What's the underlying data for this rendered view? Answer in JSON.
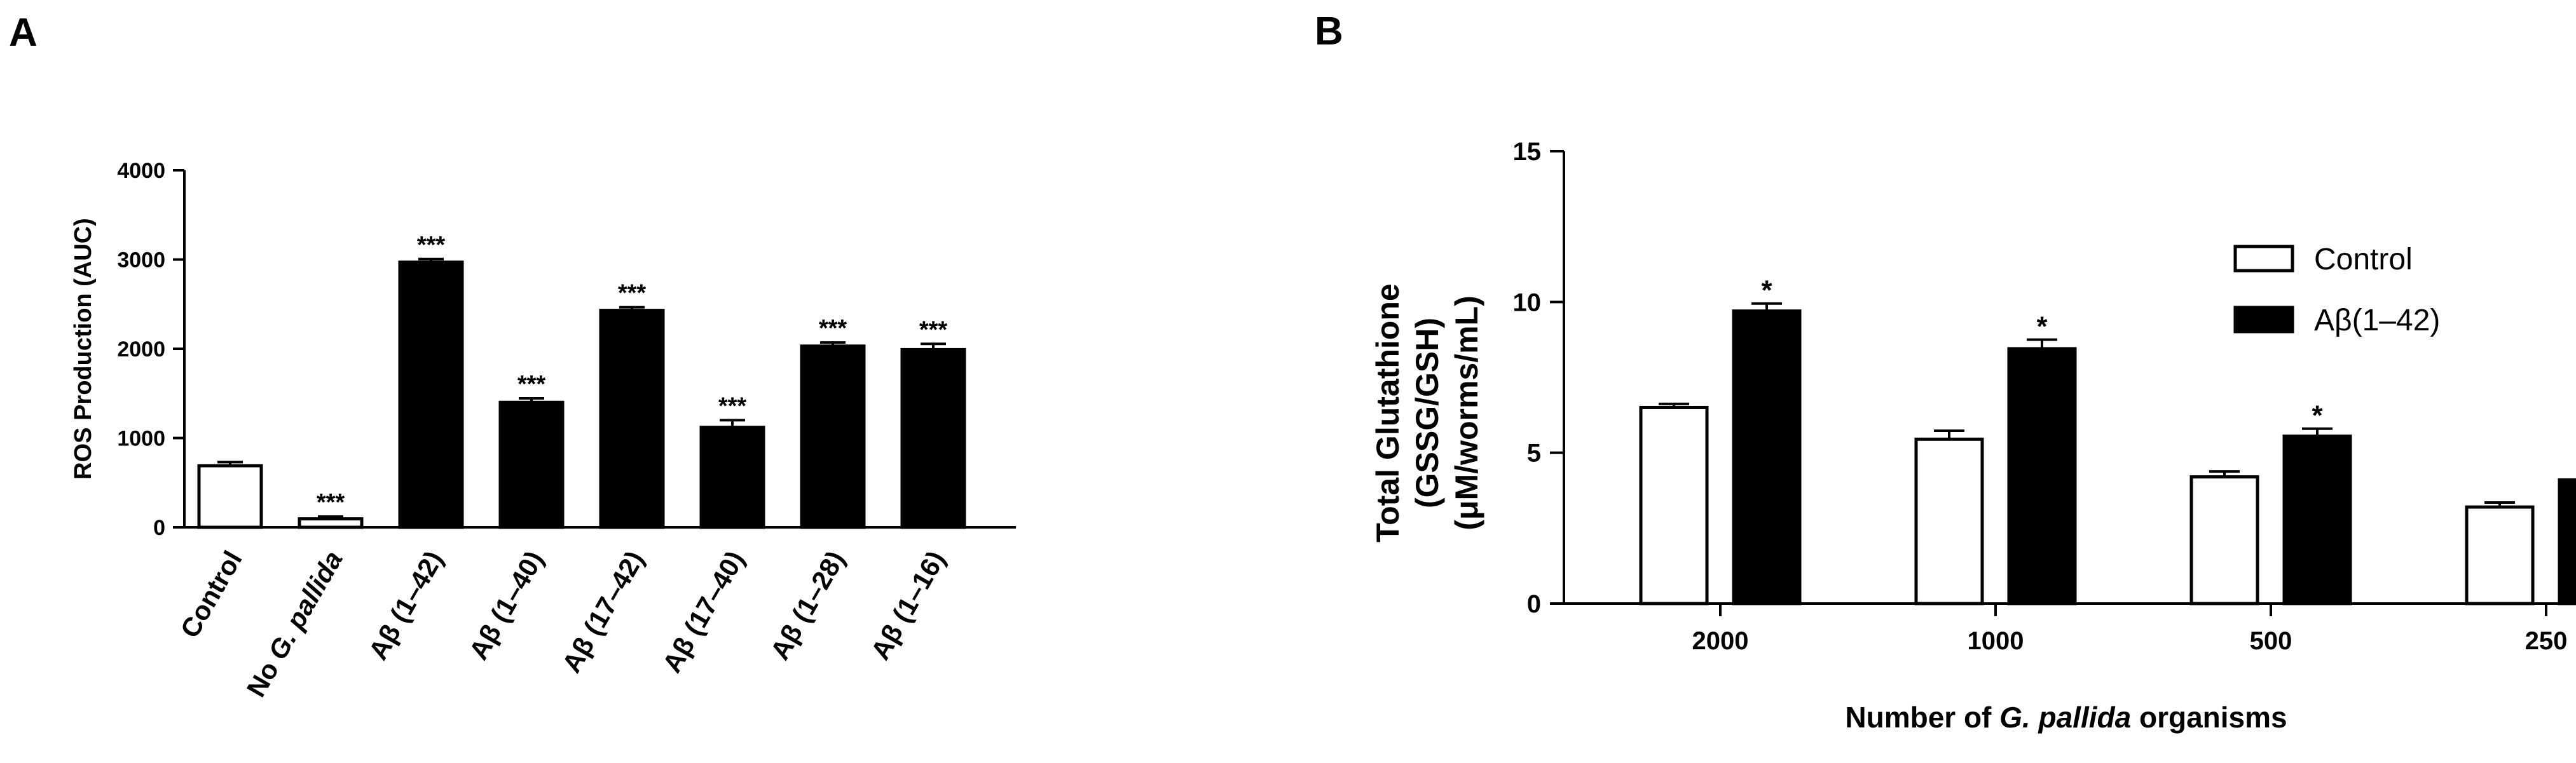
{
  "panels": {
    "a": "A",
    "b": "B"
  },
  "chart_data": [
    {
      "type": "bar",
      "title": "",
      "xlabel": "",
      "ylabel": "ROS Production (AUC)",
      "ylim": [
        0,
        4000
      ],
      "yticks": [
        "0",
        "1000",
        "2000",
        "3000",
        "4000"
      ],
      "categories": [
        {
          "text": "Control",
          "italic_tail": "",
          "prefix": ""
        },
        {
          "text": "No ",
          "italic_tail": "G. pallida",
          "prefix": ""
        },
        {
          "text": "Aβ (1–42)",
          "italic_tail": "",
          "prefix": ""
        },
        {
          "text": "Aβ (1–40)",
          "italic_tail": "",
          "prefix": ""
        },
        {
          "text": "Aβ (17–42)",
          "italic_tail": "",
          "prefix": ""
        },
        {
          "text": "Aβ (17–40)",
          "italic_tail": "",
          "prefix": ""
        },
        {
          "text": "Aβ (1–28)",
          "italic_tail": "",
          "prefix": ""
        },
        {
          "text": "Aβ (1–16)",
          "italic_tail": "",
          "prefix": ""
        }
      ],
      "values": [
        690,
        95,
        2970,
        1400,
        2430,
        1120,
        2030,
        1990
      ],
      "errors": [
        40,
        25,
        35,
        45,
        35,
        80,
        40,
        65
      ],
      "fills": [
        "white",
        "white",
        "black",
        "black",
        "black",
        "black",
        "black",
        "black"
      ],
      "significance": [
        "",
        "***",
        "***",
        "***",
        "***",
        "***",
        "***",
        "***"
      ],
      "grid": false,
      "legend": "none"
    },
    {
      "type": "bar",
      "title": "",
      "ylabel": "Total Glutathione (GSSG/GSH) (μM/worms/mL)",
      "ylabel_lines": [
        "Total Glutathione",
        "(GSSG/GSH)",
        "(μM/worms/mL)"
      ],
      "xlabel_parts": [
        "Number of ",
        "G. pallida",
        " organisms"
      ],
      "ylim": [
        0,
        15
      ],
      "yticks": [
        "0",
        "5",
        "10",
        "15"
      ],
      "categories": [
        "2000",
        "1000",
        "500",
        "250"
      ],
      "series": [
        {
          "name": "Control",
          "fill": "white",
          "values": [
            6.5,
            5.45,
            4.2,
            3.2
          ],
          "errors": [
            0.12,
            0.28,
            0.18,
            0.15
          ],
          "significance": [
            "",
            "",
            "",
            ""
          ]
        },
        {
          "name": "Aβ(1–42)",
          "fill": "black",
          "values": [
            9.7,
            8.45,
            5.55,
            4.1
          ],
          "errors": [
            0.25,
            0.3,
            0.25,
            0.1
          ],
          "significance": [
            "*",
            "*",
            "*",
            "*"
          ]
        }
      ],
      "grid": false,
      "legend": "top-right"
    }
  ]
}
